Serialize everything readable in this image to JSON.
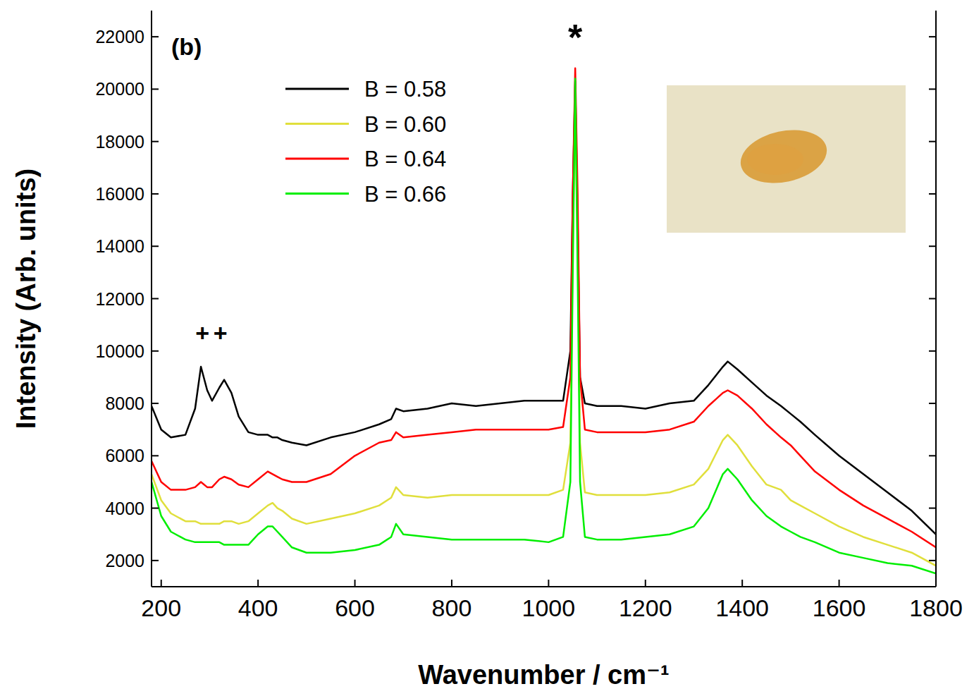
{
  "chart_data": {
    "type": "line",
    "panel_label": "(b)",
    "x_label": "Wavenumber / cm⁻¹",
    "y_label": "Intensity (Arb. units)",
    "xlim": [
      180,
      1800
    ],
    "ylim": [
      1000,
      23000
    ],
    "xticks": [
      200,
      400,
      600,
      800,
      1000,
      1200,
      1400,
      1600,
      1800
    ],
    "yticks": [
      2000,
      4000,
      6000,
      8000,
      10000,
      12000,
      14000,
      16000,
      18000,
      20000,
      22000
    ],
    "legend": "upper left",
    "annotations": [
      {
        "text": "*",
        "x": 1055,
        "y": 22300
      },
      {
        "text": "+",
        "x": 285,
        "y": 10700
      },
      {
        "text": "+",
        "x": 322,
        "y": 10700
      }
    ],
    "x": [
      180,
      200,
      220,
      250,
      270,
      282,
      295,
      305,
      320,
      330,
      345,
      360,
      380,
      400,
      420,
      430,
      440,
      450,
      470,
      500,
      550,
      600,
      650,
      675,
      685,
      700,
      750,
      800,
      850,
      900,
      950,
      1000,
      1030,
      1045,
      1050,
      1055,
      1060,
      1065,
      1075,
      1100,
      1150,
      1200,
      1250,
      1300,
      1330,
      1360,
      1370,
      1390,
      1420,
      1450,
      1480,
      1500,
      1520,
      1550,
      1600,
      1650,
      1700,
      1750,
      1800
    ],
    "series": [
      {
        "name": "B = 0.58",
        "color": "#000000",
        "values": [
          7900,
          7000,
          6700,
          6800,
          7800,
          9400,
          8500,
          8100,
          8600,
          8900,
          8400,
          7500,
          6900,
          6800,
          6800,
          6700,
          6700,
          6600,
          6500,
          6400,
          6700,
          6900,
          7200,
          7400,
          7800,
          7700,
          7800,
          8000,
          7900,
          8000,
          8100,
          8100,
          8100,
          10000,
          16000,
          20300,
          15000,
          9000,
          8000,
          7900,
          7900,
          7800,
          8000,
          8100,
          8700,
          9400,
          9600,
          9300,
          8800,
          8300,
          7900,
          7600,
          7300,
          6800,
          6000,
          5300,
          4600,
          3900,
          3000
        ]
      },
      {
        "name": "B = 0.60",
        "color": "#e0df3c",
        "values": [
          5300,
          4300,
          3800,
          3500,
          3500,
          3400,
          3400,
          3400,
          3400,
          3500,
          3500,
          3400,
          3500,
          3800,
          4100,
          4200,
          4000,
          3900,
          3600,
          3400,
          3600,
          3800,
          4100,
          4400,
          4800,
          4500,
          4400,
          4500,
          4500,
          4500,
          4500,
          4500,
          4700,
          6500,
          14000,
          19500,
          14000,
          6500,
          4600,
          4500,
          4500,
          4500,
          4600,
          4900,
          5500,
          6600,
          6800,
          6400,
          5600,
          4900,
          4700,
          4300,
          4100,
          3800,
          3300,
          2900,
          2600,
          2300,
          1800
        ]
      },
      {
        "name": "B = 0.64",
        "color": "#ff0000",
        "values": [
          5800,
          5000,
          4700,
          4700,
          4800,
          5000,
          4800,
          4800,
          5100,
          5200,
          5100,
          4900,
          4800,
          5100,
          5400,
          5300,
          5200,
          5100,
          5000,
          5000,
          5300,
          6000,
          6500,
          6600,
          6900,
          6700,
          6800,
          6900,
          7000,
          7000,
          7000,
          7000,
          7100,
          9000,
          16000,
          20800,
          16000,
          9000,
          7000,
          6900,
          6900,
          6900,
          7000,
          7300,
          7900,
          8400,
          8500,
          8300,
          7800,
          7200,
          6700,
          6400,
          6000,
          5400,
          4700,
          4100,
          3600,
          3100,
          2500
        ]
      },
      {
        "name": "B = 0.66",
        "color": "#00ee00",
        "values": [
          5000,
          3700,
          3100,
          2800,
          2700,
          2700,
          2700,
          2700,
          2700,
          2600,
          2600,
          2600,
          2600,
          3000,
          3300,
          3300,
          3100,
          2900,
          2500,
          2300,
          2300,
          2400,
          2600,
          2900,
          3400,
          3000,
          2900,
          2800,
          2800,
          2800,
          2800,
          2700,
          2900,
          5000,
          13000,
          20400,
          13000,
          5000,
          2900,
          2800,
          2800,
          2900,
          3000,
          3300,
          4000,
          5300,
          5500,
          5100,
          4300,
          3700,
          3300,
          3100,
          2900,
          2700,
          2300,
          2100,
          1900,
          1800,
          1500
        ]
      }
    ]
  }
}
